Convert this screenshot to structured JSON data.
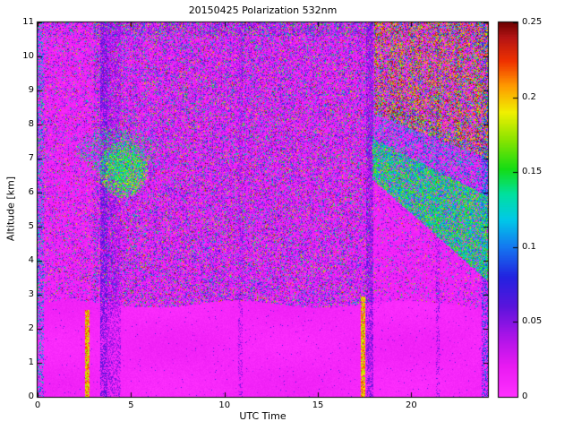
{
  "figure": {
    "bg_color": "#ffffff",
    "axes_color": "#000000"
  },
  "chart_data": {
    "type": "heatmap",
    "title": "20150425 Polarization 532nm",
    "xlabel": "UTC Time",
    "ylabel": "Altitude [km]",
    "x_axis": {
      "range": [
        0,
        24.1
      ],
      "ticks": [
        0,
        5,
        10,
        15,
        20
      ]
    },
    "y_axis": {
      "range": [
        0,
        11
      ],
      "ticks": [
        0,
        1,
        2,
        3,
        4,
        5,
        6,
        7,
        8,
        9,
        10,
        11
      ]
    },
    "colorbar": {
      "range": [
        0,
        0.25
      ],
      "ticks": [
        0,
        0.05,
        0.1,
        0.15,
        0.2,
        0.25
      ],
      "tick_labels": [
        "0",
        "0.05",
        "0.1",
        "0.15",
        "0.2",
        "0.25"
      ]
    },
    "colormap": {
      "stops": [
        [
          0.0,
          "#ff30ff"
        ],
        [
          0.02,
          "#e91af2"
        ],
        [
          0.04,
          "#ab14e8"
        ],
        [
          0.06,
          "#5a14dc"
        ],
        [
          0.08,
          "#2222e0"
        ],
        [
          0.1,
          "#1478f0"
        ],
        [
          0.118,
          "#00c8e8"
        ],
        [
          0.135,
          "#00e0a0"
        ],
        [
          0.152,
          "#14dc14"
        ],
        [
          0.172,
          "#8ce400"
        ],
        [
          0.19,
          "#f0f000"
        ],
        [
          0.208,
          "#ff9800"
        ],
        [
          0.224,
          "#f03200"
        ],
        [
          0.24,
          "#b41414"
        ],
        [
          0.25,
          "#6e0000"
        ]
      ]
    },
    "field": {
      "bottom": {
        "top": 2.72,
        "wave": 0.1,
        "base": 0.003,
        "noise": 0.011,
        "speck_p": 0.012
      },
      "background": {
        "base": 0.003,
        "noise": 0.016,
        "speckle": [
          {
            "p": 0.2,
            "lo": 0.018,
            "hi": 0.065
          },
          {
            "p": 0.1,
            "lo": 0.065,
            "hi": 0.15
          },
          {
            "p": 0.055,
            "lo": 0.15,
            "hi": 0.25
          }
        ],
        "curtain": {
          "t0": 2.95,
          "t1": 17.9,
          "inside": 1.25,
          "outside": 0.7,
          "under_wedge": 0.45
        }
      },
      "bands": [
        {
          "t0": 3.35,
          "t1": 3.75,
          "mix": 0.6,
          "v": 0.055
        },
        {
          "t0": 3.75,
          "t1": 4.45,
          "mix": 0.4,
          "v": 0.045
        },
        {
          "t0": 17.6,
          "t1": 17.95,
          "mix": 0.55,
          "v": 0.05
        },
        {
          "t0": 10.75,
          "t1": 10.95,
          "mix": 0.3,
          "v": 0.045
        },
        {
          "t0": 21.3,
          "t1": 21.5,
          "mix": 0.28,
          "v": 0.05
        },
        {
          "t0": 0.0,
          "t1": 0.35,
          "mix": 0.3,
          "v": 0.11
        },
        {
          "t0": 23.75,
          "t1": 24.1,
          "mix": 0.4,
          "v": 0.085
        }
      ],
      "streaks": [
        {
          "t0": 2.56,
          "t1": 2.78,
          "z1": 2.55,
          "mix": 0.92,
          "v": 0.2
        },
        {
          "t0": 17.3,
          "t1": 17.52,
          "z1": 2.95,
          "mix": 0.92,
          "v": 0.2
        }
      ],
      "clouds": [
        {
          "t0": 3.3,
          "t1": 5.9,
          "z0": 5.85,
          "z1": 7.5,
          "density": 0.85,
          "lo": 0.11,
          "hi": 0.19
        },
        {
          "t0": 2.1,
          "t1": 6.3,
          "z0": 6.5,
          "z1": 7.95,
          "density": 0.3,
          "lo": 0.1,
          "hi": 0.17
        }
      ],
      "wedge": {
        "t0": 17.9,
        "t1": 24.1,
        "ztop0": 7.6,
        "ztop1": 5.9,
        "zbot0": 6.4,
        "zbot1": 3.4,
        "density": 0.8,
        "lo": 0.09,
        "hi": 0.18,
        "halo": 1.3,
        "halo_density": 0.25,
        "halo_lo": 0.07,
        "halo_hi": 0.15
      },
      "canopy": {
        "t0": 18.0,
        "t1": 24.1,
        "zb0": 8.3,
        "zb1": 7.0,
        "density": 0.5,
        "streak_freq": 9.0,
        "red_frac": 0.55,
        "red_lo": 0.185,
        "red_hi": 0.25,
        "mix_lo": 0.05,
        "mix_hi": 0.18
      }
    }
  }
}
